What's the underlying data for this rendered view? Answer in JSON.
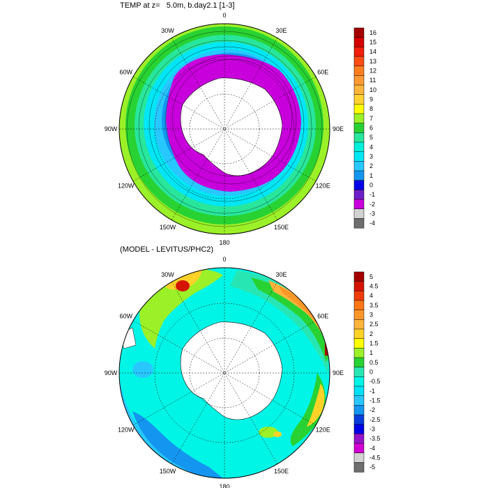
{
  "panels": [
    {
      "title": "TEMP at z=   5.0m, b.day2.1 [1-3]",
      "colorbar": {
        "labels": [
          "16",
          "15",
          "14",
          "13",
          "12",
          "11",
          "10",
          "9",
          "8",
          "7",
          "6",
          "5",
          "4",
          "3",
          "2",
          "1",
          "0",
          "-1",
          "-2",
          "-3",
          "-4"
        ],
        "colors": [
          "#a50000",
          "#d40000",
          "#f01e0a",
          "#ff4b14",
          "#ff7d1e",
          "#ff9b32",
          "#ffb43c",
          "#ffd232",
          "#ffff00",
          "#9bf028",
          "#28d232",
          "#28e69b",
          "#00f0dc",
          "#00e6f5",
          "#28c8ff",
          "#1496f0",
          "#0000e6",
          "#6e1ec8",
          "#c800dc",
          "#d2d2d2",
          "#6e6e6e"
        ]
      }
    },
    {
      "title": "(MODEL - LEVITUS/PHC2)",
      "colorbar": {
        "labels": [
          "5",
          "4.5",
          "4",
          "3.5",
          "3",
          "2.5",
          "2",
          "1.5",
          "1",
          "0.5",
          "0",
          "-0.5",
          "-1",
          "-1.5",
          "-2",
          "-2.5",
          "-3",
          "-3.5",
          "-4",
          "-4.5",
          "-5"
        ],
        "colors": [
          "#a50000",
          "#d41400",
          "#f03c0a",
          "#ff7814",
          "#ff9628",
          "#ffb43c",
          "#ffd228",
          "#ffff00",
          "#9bf028",
          "#28d232",
          "#28e6b4",
          "#00f5e6",
          "#00e1f5",
          "#28c8ff",
          "#1496f0",
          "#0a3cdc",
          "#0000e6",
          "#9614c8",
          "#d200d2",
          "#d2d2d2",
          "#6e6e6e"
        ]
      }
    }
  ],
  "longitude_labels": [
    "0",
    "30E",
    "60E",
    "90E",
    "120E",
    "150E",
    "180",
    "150W",
    "120W",
    "90W",
    "60W",
    "30W"
  ]
}
